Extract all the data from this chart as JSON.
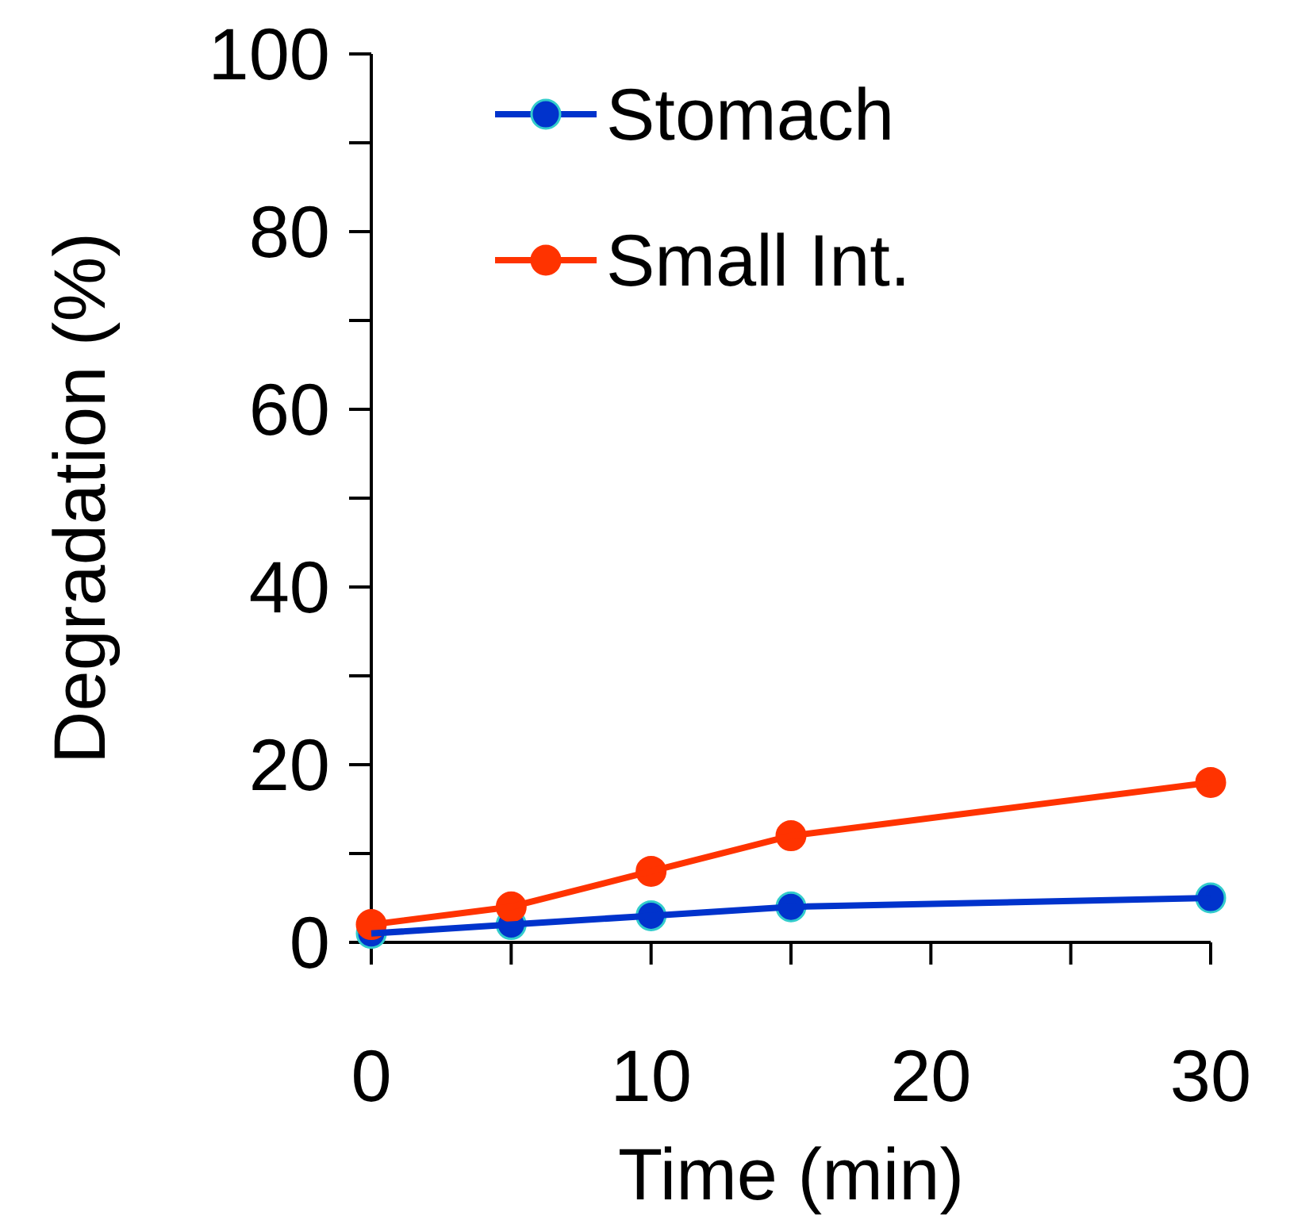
{
  "chart_data": {
    "type": "line",
    "xlabel": "Time (min)",
    "ylabel": "Degradation (%)",
    "x": [
      0,
      5,
      10,
      15,
      30
    ],
    "series": [
      {
        "name": "Stomach",
        "color": "#0033cc",
        "values": [
          1,
          2,
          3,
          4,
          5
        ]
      },
      {
        "name": "Small Int.",
        "color": "#ff3300",
        "values": [
          2,
          4,
          8,
          12,
          18
        ]
      }
    ],
    "xlim": [
      0,
      30
    ],
    "xticks": [
      0,
      {
        "value": 5,
        "label": null
      },
      10,
      {
        "value": 15,
        "label": null
      },
      20,
      {
        "value": 25,
        "label": null
      },
      30
    ],
    "ylim": [
      0,
      100
    ],
    "yticks": [
      0,
      {
        "value": 10,
        "label": null
      },
      20,
      {
        "value": 30,
        "label": null
      },
      40,
      {
        "value": 50,
        "label": null
      },
      60,
      {
        "value": 70,
        "label": null
      },
      80,
      {
        "value": 90,
        "label": null
      },
      100
    ],
    "grid": false,
    "legend": "top",
    "marker": "circle",
    "line_style": "solid"
  }
}
